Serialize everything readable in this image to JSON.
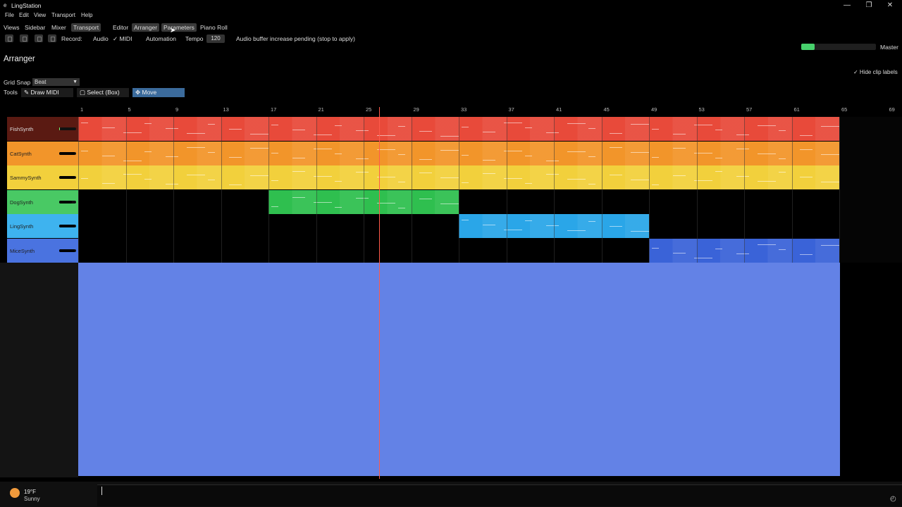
{
  "window": {
    "icon": "e",
    "title": "LingStation",
    "minimize": "—",
    "restore": "❐",
    "close": "✕"
  },
  "menu": [
    "File",
    "Edit",
    "View",
    "Transport",
    "Help"
  ],
  "views": {
    "label": "Views",
    "tabs": [
      "Sidebar",
      "Mixer",
      "Transport",
      "Editor",
      "Arranger",
      "Parameters",
      "Piano Roll"
    ]
  },
  "transport": {
    "record_label": "Record:",
    "audio_label": "Audio",
    "midi_label": "✓ MIDI",
    "automation_label": "Automation",
    "tempo_label": "Tempo",
    "tempo_value": "120",
    "status": "Audio buffer increase pending (stop to apply)"
  },
  "master": {
    "label": "Master",
    "level": 0.18,
    "color": "#47d16c"
  },
  "arranger": {
    "title": "Arranger",
    "hide_clip_labels": "✓  Hide clip labels",
    "grid_snap_label": "Grid Snap",
    "grid_snap_value": "Beat",
    "tools_label": "Tools",
    "tools": [
      {
        "label": "✎  Draw MIDI",
        "active": false
      },
      {
        "label": "▢  Select (Box)",
        "active": false
      },
      {
        "label": "✥  Move",
        "active": true
      }
    ],
    "ruler": [
      "1",
      "5",
      "9",
      "13",
      "17",
      "21",
      "25",
      "29",
      "33",
      "37",
      "41",
      "45",
      "49",
      "53",
      "57",
      "61",
      "65",
      "69"
    ]
  },
  "tracks": [
    {
      "name": "FishSynth",
      "color": "#e84a3a",
      "header": "#5a1a12",
      "meter": 0.05
    },
    {
      "name": "CatSynth",
      "color": "#f2952a",
      "header": "#f2952a",
      "meter": 0.9
    },
    {
      "name": "SammySynth",
      "color": "#f2d03c",
      "header": "#f2d03c",
      "meter": 0.9
    },
    {
      "name": "DogSynth",
      "color": "#2fbf4f",
      "header": "#49c964",
      "meter": 0.75
    },
    {
      "name": "LingSynth",
      "color": "#2aa6e8",
      "header": "#3eb3ef",
      "meter": 0.9
    },
    {
      "name": "MiceSynth",
      "color": "#3a63d8",
      "header": "#4a73e0",
      "meter": 0.9
    }
  ],
  "clips": [
    {
      "track": 0,
      "start_bar": 1,
      "end_bar": 65
    },
    {
      "track": 1,
      "start_bar": 1,
      "end_bar": 65
    },
    {
      "track": 2,
      "start_bar": 1,
      "end_bar": 65
    },
    {
      "track": 3,
      "start_bar": 17,
      "end_bar": 33
    },
    {
      "track": 4,
      "start_bar": 33,
      "end_bar": 49
    },
    {
      "track": 5,
      "start_bar": 49,
      "end_bar": 65
    }
  ],
  "playhead_bar": 26.3,
  "fill_color": "#6382e6",
  "taskbar": {
    "weather_temp": "19°F",
    "weather_cond": "Sunny",
    "corner_icon": "◴"
  }
}
